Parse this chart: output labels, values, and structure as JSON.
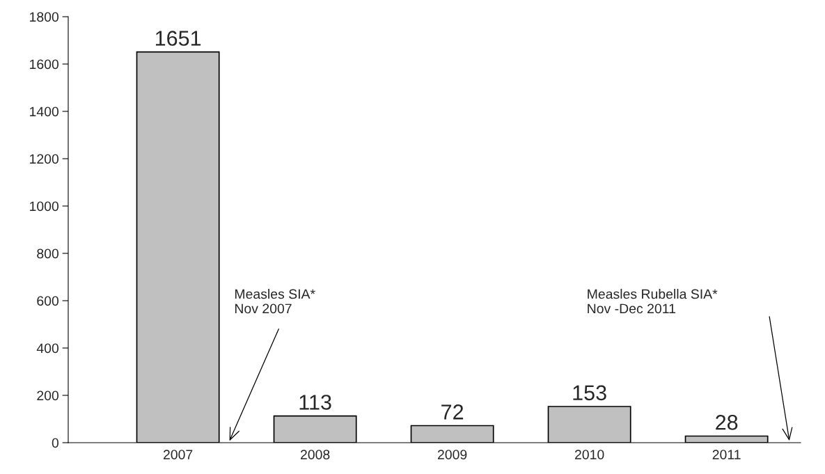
{
  "chart_data": {
    "type": "bar",
    "categories": [
      "2007",
      "2008",
      "2009",
      "2010",
      "2011"
    ],
    "values": [
      1651,
      113,
      72,
      153,
      28
    ],
    "color": "#c0c0c0",
    "ylim": [
      0,
      1800
    ],
    "yticks": [
      0,
      200,
      400,
      600,
      800,
      1000,
      1200,
      1400,
      1600,
      1800
    ],
    "data_labels": true,
    "grid": false,
    "legend": false,
    "annotations": [
      "Measles SIA*\nNov 2007",
      "Measles Rubella SIA*\nNov -Dec 2011"
    ]
  }
}
